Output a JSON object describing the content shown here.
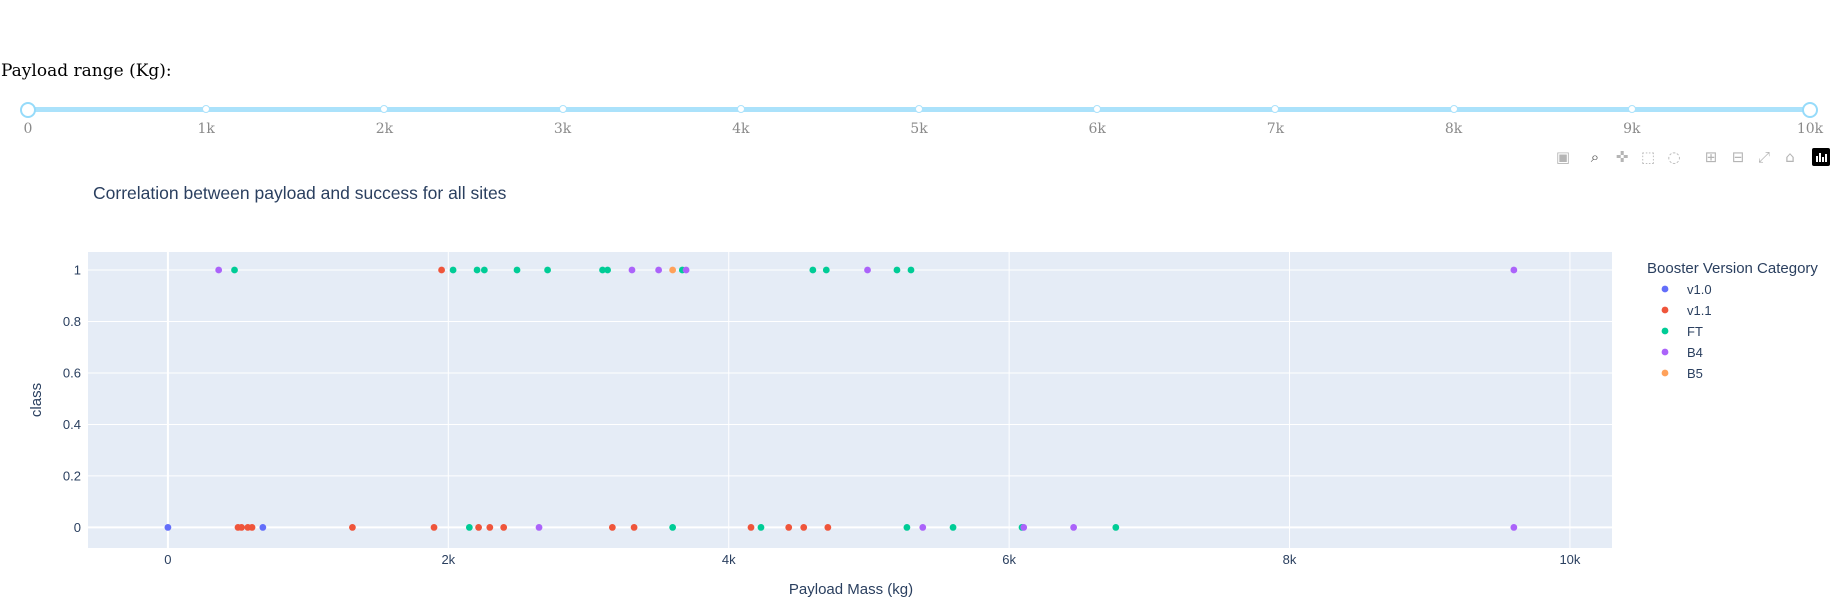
{
  "slider": {
    "label": "Payload range (Kg):",
    "min": 0,
    "max": 10000,
    "value_low": 0,
    "value_high": 10000,
    "marks": [
      "0",
      "1k",
      "2k",
      "3k",
      "4k",
      "5k",
      "6k",
      "7k",
      "8k",
      "9k",
      "10k"
    ]
  },
  "modebar": {
    "buttons": [
      "camera-icon",
      "zoom-icon",
      "pan-icon",
      "box-select-icon",
      "lasso-icon",
      "zoom-in-icon",
      "zoom-out-icon",
      "autoscale-icon",
      "reset-axes-icon",
      "plotly-logo-icon"
    ]
  },
  "chart_data": {
    "type": "scatter",
    "title": "Correlation between payload and success for all sites",
    "xlabel": "Payload Mass (kg)",
    "ylabel": "class",
    "xlim": [
      -570,
      10300
    ],
    "ylim": [
      -0.08,
      1.07
    ],
    "xticks": [
      0,
      2000,
      4000,
      6000,
      8000,
      10000
    ],
    "xtick_labels": [
      "0",
      "2k",
      "4k",
      "6k",
      "8k",
      "10k"
    ],
    "yticks": [
      0,
      0.2,
      0.4,
      0.6,
      0.8,
      1
    ],
    "ytick_labels": [
      "0",
      "0.2",
      "0.4",
      "0.6",
      "0.8",
      "1"
    ],
    "grid": true,
    "plot_bgcolor": "#e5ecf6",
    "legend": {
      "title": "Booster Version Category",
      "placement": "right"
    },
    "series": [
      {
        "name": "v1.0",
        "color": "#636efa",
        "x": [
          0,
          677
        ],
        "y": [
          0,
          0
        ]
      },
      {
        "name": "v1.1",
        "color": "#ef553b",
        "x": [
          500,
          525,
          570,
          600,
          1316,
          1898,
          1952,
          2216,
          2296,
          2395,
          3170,
          3325,
          4159,
          4428,
          4535,
          4707
        ],
        "y": [
          0,
          0,
          0,
          0,
          0,
          0,
          1,
          0,
          0,
          0,
          0,
          0,
          0,
          0,
          0,
          0
        ]
      },
      {
        "name": "FT",
        "color": "#00cc96",
        "x": [
          475,
          2034,
          2150,
          2205,
          2257,
          2490,
          2708,
          3100,
          3136,
          3600,
          3669,
          4230,
          4600,
          4696,
          5200,
          5271,
          5300,
          5600,
          6092,
          6761
        ],
        "y": [
          1,
          1,
          0,
          1,
          1,
          1,
          1,
          1,
          1,
          0,
          1,
          0,
          1,
          1,
          1,
          0,
          1,
          0,
          0,
          0
        ]
      },
      {
        "name": "B4",
        "color": "#ab63fa",
        "x": [
          362,
          2647,
          3310,
          3500,
          3696,
          4990,
          5384,
          6104,
          6460,
          9600,
          9600
        ],
        "y": [
          1,
          0,
          1,
          1,
          1,
          1,
          0,
          0,
          0,
          1,
          0
        ]
      },
      {
        "name": "B5",
        "color": "#ffa15a",
        "x": [
          3600
        ],
        "y": [
          1
        ]
      }
    ]
  }
}
